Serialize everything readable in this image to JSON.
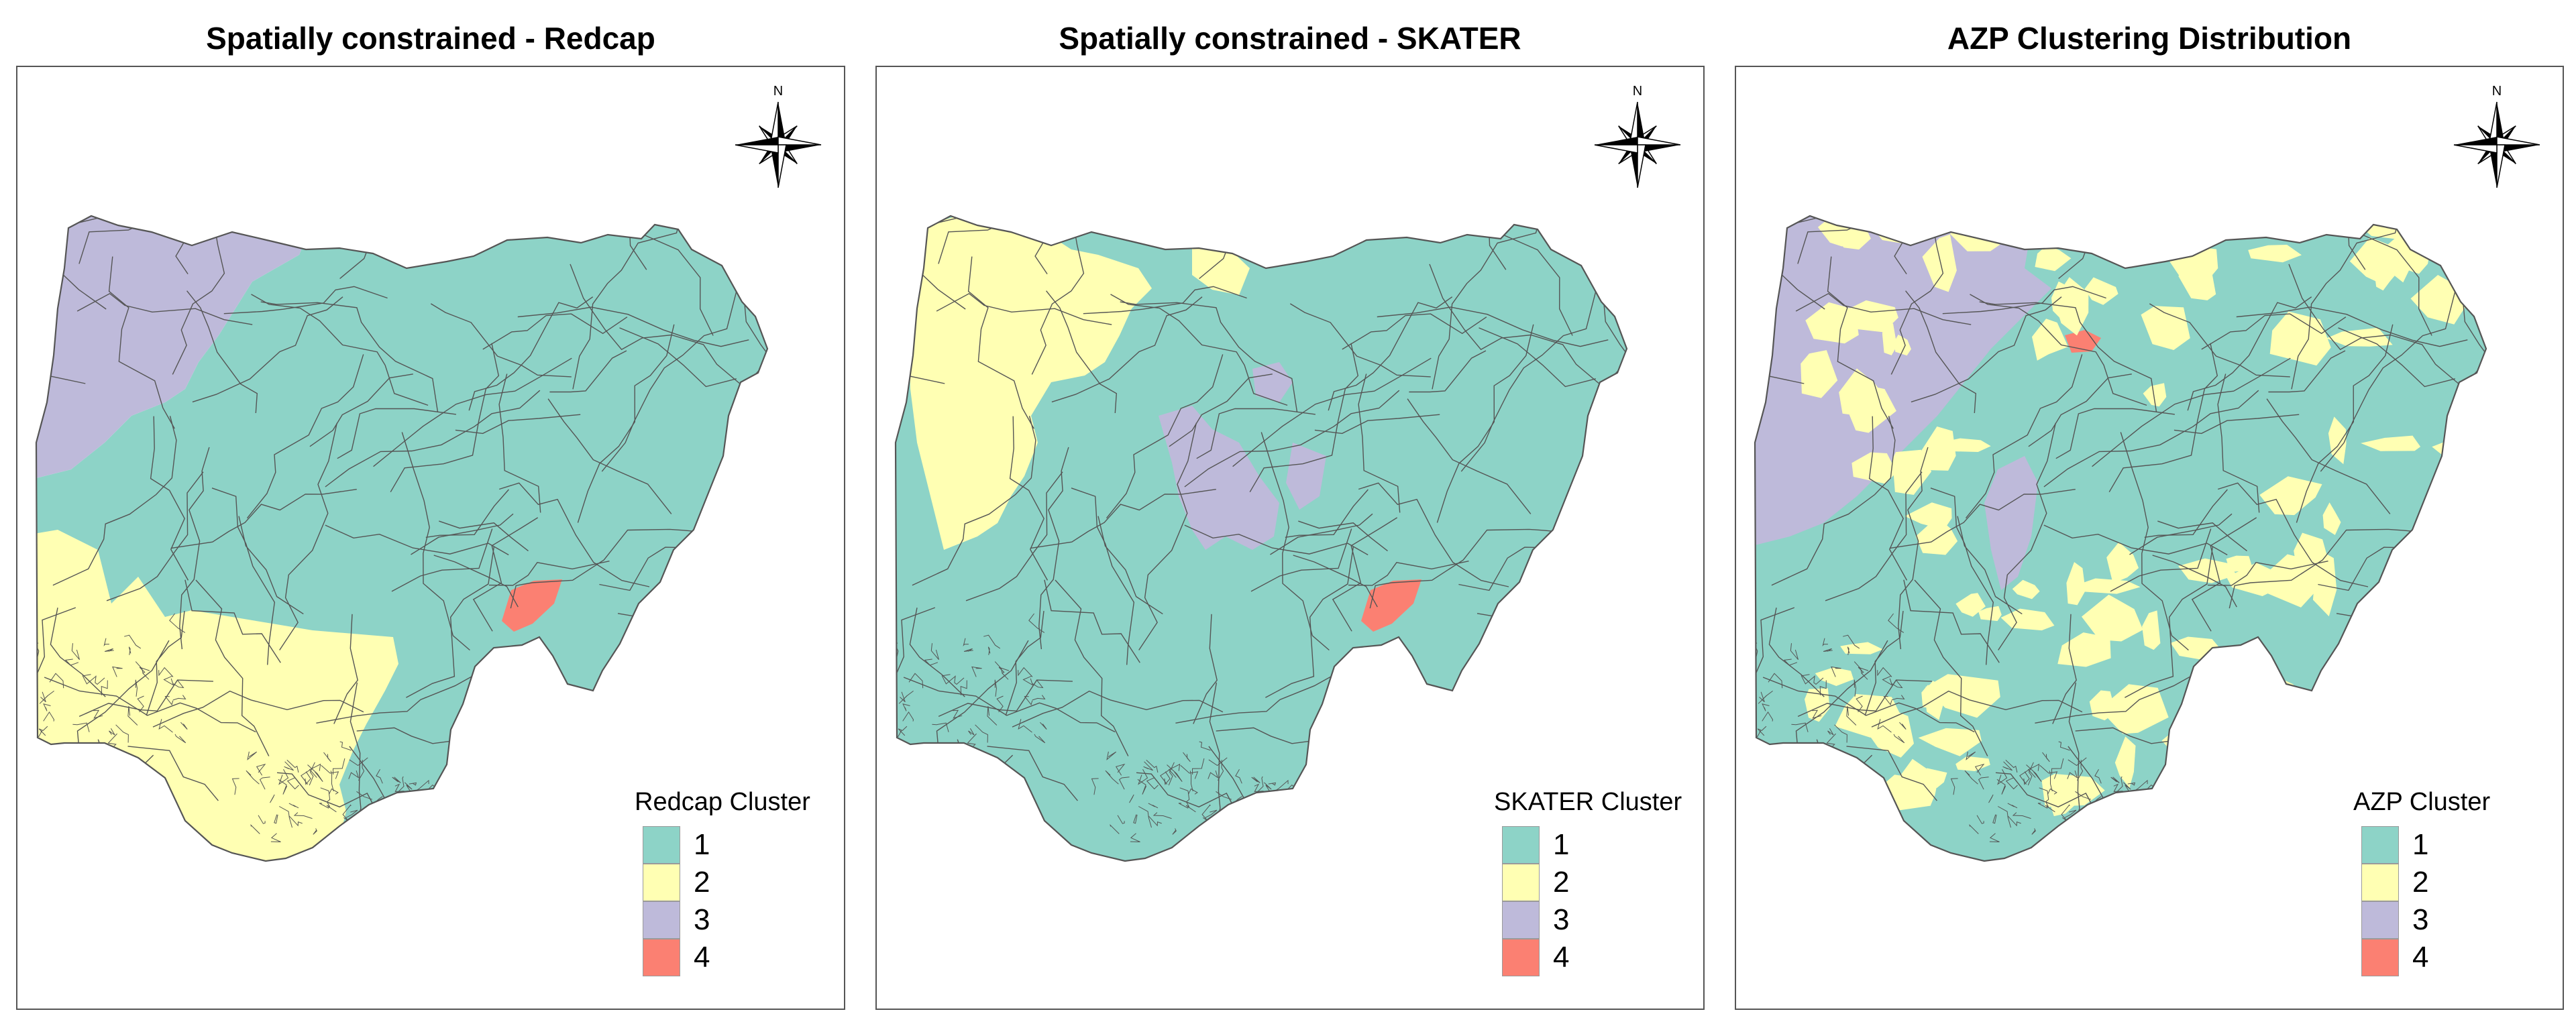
{
  "colors": {
    "cluster_1": "#8dd3c7",
    "cluster_2": "#ffffb3",
    "cluster_3": "#bebada",
    "cluster_4": "#fb8072",
    "boundary": "#555555",
    "frame": "#555555"
  },
  "compass": {
    "north_label": "N"
  },
  "legend_labels": [
    "1",
    "2",
    "3",
    "4"
  ],
  "panels": [
    {
      "title": "Spatially constrained - Redcap",
      "legend_title": "Redcap Cluster",
      "regions": [
        "3",
        "1",
        "2",
        "4"
      ],
      "speckle": "none"
    },
    {
      "title": "Spatially constrained - SKATER",
      "legend_title": "SKATER Cluster",
      "regions": [
        "2",
        "1",
        "3",
        "4"
      ],
      "speckle": "none"
    },
    {
      "title": "AZP Clustering Distribution",
      "legend_title": "AZP Cluster",
      "regions": [
        "3",
        "1",
        "2",
        "4"
      ],
      "speckle": "2"
    }
  ]
}
